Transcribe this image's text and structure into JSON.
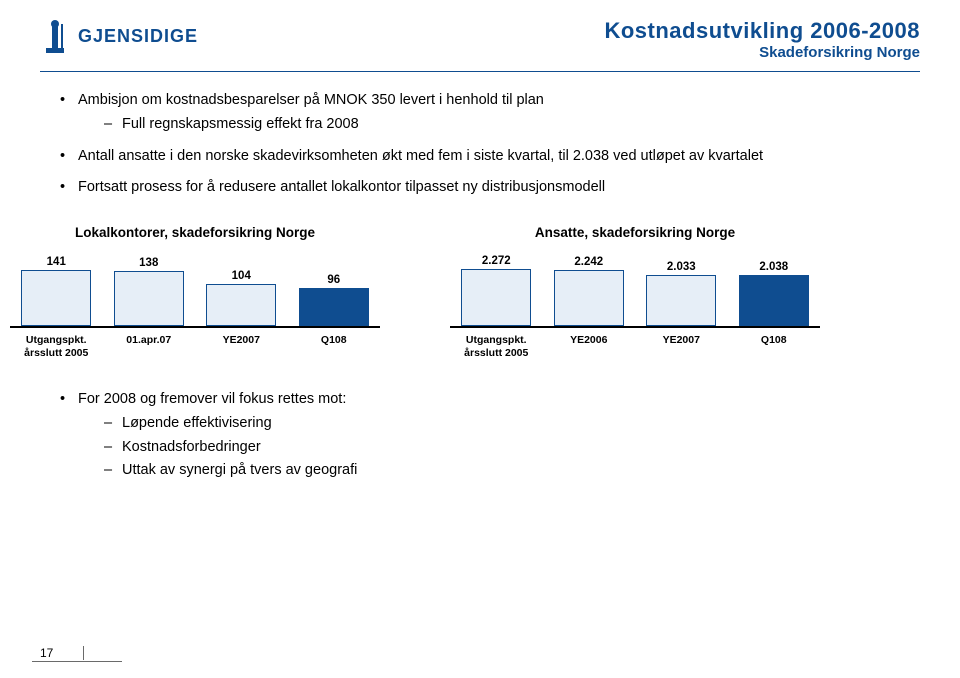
{
  "colors": {
    "brand_blue": "#0f4d90",
    "rule": "#0f4d90",
    "bar_outline": "#0f4d90",
    "bar_light": "#e6eef7",
    "bar_solid": "#0f4d90",
    "axis": "#000000",
    "tick": "#6a6a6a"
  },
  "header": {
    "logo_text": "GJENSIDIGE",
    "title": "Kostnadsutvikling 2006-2008",
    "subtitle": "Skadeforsikring Norge"
  },
  "bullets_top": [
    {
      "text": "Ambisjon om kostnadsbesparelser på MNOK 350 levert i henhold til plan",
      "sub": [
        "Full regnskapsmessig effekt fra 2008"
      ]
    },
    {
      "text": "Antall ansatte i den norske skadevirksomheten økt med fem i siste kvartal, til 2.038 ved utløpet av kvartalet",
      "sub": []
    },
    {
      "text": "Fortsatt prosess for å redusere antallet lokalkontor tilpasset ny distribusjonsmodell",
      "sub": []
    }
  ],
  "chart_left": {
    "title": "Lokalkontorer, skadeforsikring Norge",
    "ymax": 150,
    "bars": [
      {
        "value": 141,
        "label": "141",
        "xlabel_l1": "Utgangspkt.",
        "xlabel_l2": "årsslutt 2005",
        "highlight": false
      },
      {
        "value": 138,
        "label": "138",
        "xlabel_l1": "01.apr.07",
        "xlabel_l2": "",
        "highlight": false
      },
      {
        "value": 104,
        "label": "104",
        "xlabel_l1": "YE2007",
        "xlabel_l2": "",
        "highlight": false
      },
      {
        "value": 96,
        "label": "96",
        "xlabel_l1": "Q108",
        "xlabel_l2": "",
        "highlight": true
      }
    ]
  },
  "chart_right": {
    "title": "Ansatte, skadeforsikring Norge",
    "ymax": 2400,
    "bars": [
      {
        "value": 2272,
        "label": "2.272",
        "xlabel_l1": "Utgangspkt.",
        "xlabel_l2": "årsslutt 2005",
        "highlight": false
      },
      {
        "value": 2242,
        "label": "2.242",
        "xlabel_l1": "YE2006",
        "xlabel_l2": "",
        "highlight": false
      },
      {
        "value": 2033,
        "label": "2.033",
        "xlabel_l1": "YE2007",
        "xlabel_l2": "",
        "highlight": false
      },
      {
        "value": 2038,
        "label": "2.038",
        "xlabel_l1": "Q108",
        "xlabel_l2": "",
        "highlight": true
      }
    ]
  },
  "bullets_bottom": [
    {
      "text": "For 2008 og fremover vil fokus rettes mot:",
      "sub": [
        "Løpende effektivisering",
        "Kostnadsforbedringer",
        "Uttak av synergi på tvers av geografi"
      ]
    }
  ],
  "page_number": "17"
}
